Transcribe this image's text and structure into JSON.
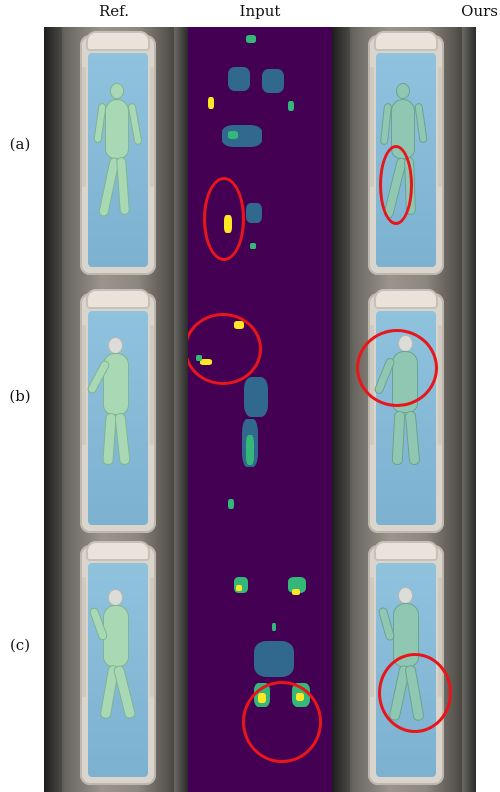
{
  "columns": {
    "ref": "Ref.",
    "input": "Input",
    "ours": "Ours"
  },
  "rows": [
    {
      "label": "(a)"
    },
    {
      "label": "(b)"
    },
    {
      "label": "(c)"
    }
  ],
  "colors": {
    "heatmap_background": "#440154",
    "heatmap_low": "#31688e",
    "heatmap_mid": "#35b779",
    "heatmap_high": "#fde725",
    "highlight_circle": "#e8161a",
    "body_mesh": "#a9d9b4",
    "mattress": "#8fc2dd"
  }
}
